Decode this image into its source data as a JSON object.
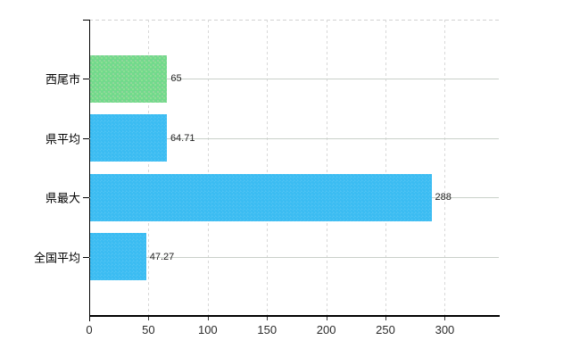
{
  "chart_data": {
    "type": "bar",
    "orientation": "horizontal",
    "title": "",
    "xlabel": "",
    "ylabel": "",
    "categories": [
      "西尾市",
      "県平均",
      "県最大",
      "全国平均"
    ],
    "values": [
      65,
      64.71,
      288,
      47.27
    ],
    "value_labels": [
      "65",
      "64.71",
      "288",
      "47.27"
    ],
    "bar_colors": [
      "#72d98c",
      "#3bbcf2",
      "#3bbcf2",
      "#3bbcf2"
    ],
    "x_tick_values": [
      0,
      50,
      100,
      150,
      200,
      250,
      300
    ],
    "x_tick_labels": [
      "0",
      "50",
      "100",
      "150",
      "200",
      "250",
      "300"
    ],
    "xlim": [
      0,
      345.6
    ],
    "legend": "none",
    "grid": {
      "vertical": "dashed",
      "horizontal": "solid-at-category-centers",
      "top_border": "dashed"
    },
    "colors": {
      "highlight_bar": "#72d98c",
      "default_bar": "#3bbcf2",
      "gridline": "#c9d0c9",
      "axis": "#000000",
      "text": "#222222"
    }
  }
}
